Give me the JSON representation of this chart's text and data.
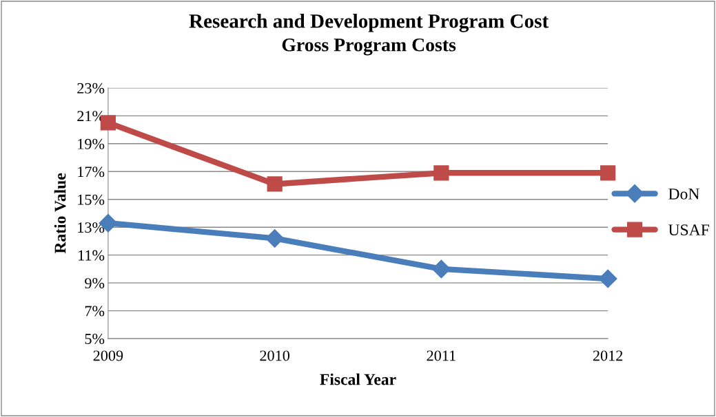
{
  "chart_data": {
    "type": "line",
    "title": "Research and Development Program Cost",
    "subtitle": "Gross Program Costs",
    "xlabel": "Fiscal Year",
    "ylabel": "Ratio Value",
    "categories": [
      "2009",
      "2010",
      "2011",
      "2012"
    ],
    "series": [
      {
        "name": "DoN",
        "color": "#4a7ebb",
        "marker": "diamond",
        "values": [
          13.3,
          12.2,
          10.0,
          9.3
        ]
      },
      {
        "name": "USAF",
        "color": "#be4b48",
        "marker": "square",
        "values": [
          20.5,
          16.1,
          16.9,
          16.9
        ]
      }
    ],
    "ylim": [
      5,
      23
    ],
    "yticks": [
      {
        "value": 5,
        "label": "5%"
      },
      {
        "value": 7,
        "label": "7%"
      },
      {
        "value": 9,
        "label": "9%"
      },
      {
        "value": 11,
        "label": "11%"
      },
      {
        "value": 13,
        "label": "13%"
      },
      {
        "value": 15,
        "label": "15%"
      },
      {
        "value": 17,
        "label": "17%"
      },
      {
        "value": 19,
        "label": "19%"
      },
      {
        "value": 21,
        "label": "21%"
      },
      {
        "value": 23,
        "label": "23%"
      }
    ],
    "grid": "y",
    "legend": "right",
    "line_style": "solid"
  }
}
